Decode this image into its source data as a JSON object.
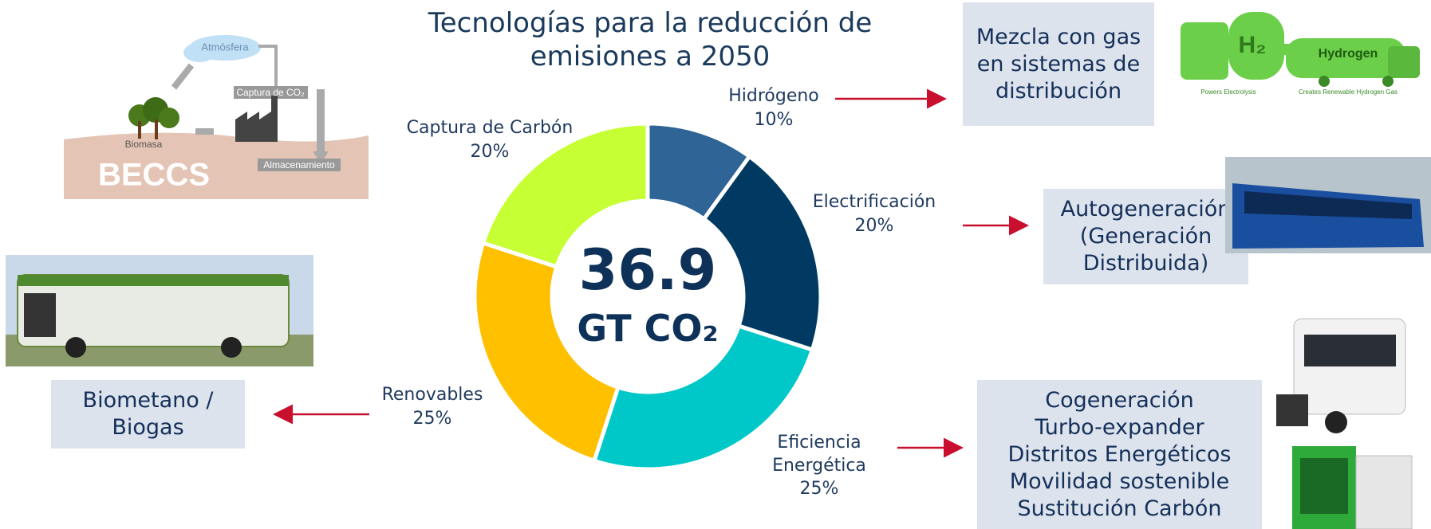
{
  "header": {
    "title": "Tecnologías para la reducción de emisiones a 2050"
  },
  "chart_data": {
    "type": "pie",
    "categories": [
      "Hidrógeno",
      "Electrificación",
      "Eficiencia Energética",
      "Renovables",
      "Captura de Carbón"
    ],
    "values": [
      10,
      20,
      25,
      25,
      20
    ],
    "value_labels": [
      "10%",
      "20%",
      "25%",
      "25%",
      "20%"
    ],
    "colors": [
      "#2f6497",
      "#003a63",
      "#00c8c8",
      "#ffc000",
      "#c6ff33"
    ],
    "donut": true,
    "center_label": "36.9",
    "center_unit": "GT CO₂"
  },
  "boxes": {
    "mezcla": "Mezcla con gas en sistemas de distribución",
    "autogeneracion": "Autogeneración (Generación Distribuida)",
    "biometano": "Biometano / Biogas",
    "cogeneracion": [
      "Cogeneración",
      "Turbo-expander",
      "Distritos Energéticos",
      "Movilidad sostenible",
      "Sustitución Carbón"
    ]
  },
  "images": {
    "beccs": {
      "atmosfera": "Atmósfera",
      "captura": "Captura de CO₂",
      "biomasa": "Biomasa",
      "almacenamiento": "Almacenamiento",
      "title": "BECCS"
    },
    "hydrogen": {
      "symbol": "H₂",
      "truck": "Hydrogen",
      "left_caption": "Powers Electrolysis",
      "right_caption": "Creates Renewable Hydrogen Gas"
    }
  }
}
